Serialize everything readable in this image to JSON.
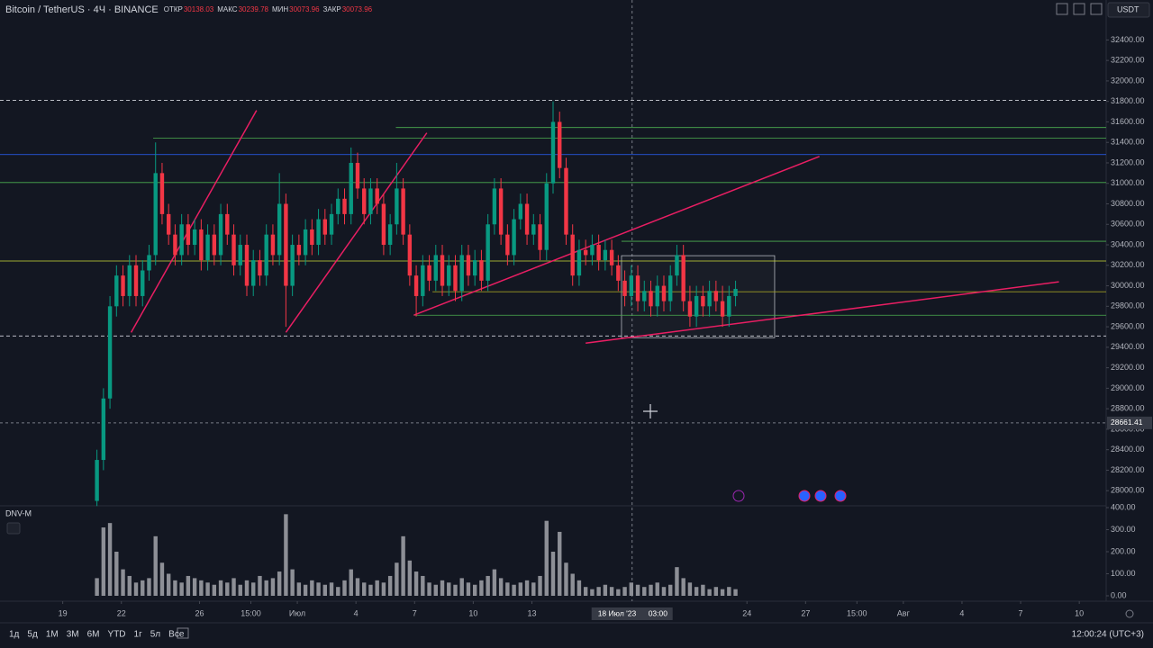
{
  "header": {
    "symbol": "Bitcoin / TetherUS · 4Ч · BINANCE",
    "legend_labels": [
      "ОТКР",
      "МАКС",
      "МИН",
      "ЗАКР"
    ],
    "legend_values": [
      30138.03,
      30239.78,
      30073.96,
      30073.96
    ],
    "currency": "USDT"
  },
  "chart_data": {
    "type": "candlestick",
    "x": [
      42,
      50,
      58,
      66,
      74,
      82,
      90,
      98,
      106,
      114,
      122,
      130,
      138,
      146,
      154,
      162,
      170,
      178,
      186,
      194,
      202,
      210,
      218,
      226,
      234,
      242,
      250,
      258,
      266,
      274,
      282,
      290,
      298,
      306,
      314,
      322,
      330,
      338,
      346,
      354,
      362,
      370,
      378,
      386,
      394,
      402,
      410,
      418,
      426,
      434,
      442,
      450,
      458,
      466,
      474,
      482,
      490,
      498,
      506,
      514,
      522,
      530,
      538,
      546,
      554,
      562,
      570,
      578,
      586,
      594,
      602,
      610,
      618,
      626,
      634,
      642,
      650,
      658,
      666,
      674,
      682,
      690,
      698,
      706,
      714,
      722,
      730,
      738,
      746,
      754,
      762,
      770,
      778,
      786,
      794,
      802,
      810,
      818,
      826
    ],
    "open": [
      27900,
      28300,
      28900,
      29800,
      30100,
      29900,
      30200,
      29900,
      30150,
      30300,
      31100,
      30700,
      30500,
      30300,
      30600,
      30400,
      30550,
      30250,
      30500,
      30300,
      30700,
      30500,
      30200,
      30400,
      30000,
      30250,
      30100,
      30500,
      30300,
      30800,
      30000,
      30400,
      30300,
      30550,
      30400,
      30650,
      30500,
      30700,
      30850,
      30700,
      31200,
      30950,
      30700,
      30950,
      30800,
      30400,
      30600,
      30950,
      30500,
      30100,
      29900,
      30200,
      30050,
      30300,
      30000,
      30200,
      29950,
      30300,
      30100,
      30250,
      30050,
      30600,
      30950,
      30500,
      30300,
      30650,
      30800,
      30500,
      30600,
      30350,
      31000,
      31600,
      31150,
      30500,
      30100,
      30350,
      30300,
      30400,
      30250,
      30350,
      30200,
      30050,
      29900,
      30100,
      29850,
      29950,
      29800,
      30000,
      29850,
      30100,
      30300,
      29850,
      29700,
      29900,
      29800,
      29950,
      29850,
      29700,
      29900
    ],
    "high": [
      28400,
      29000,
      29900,
      30200,
      30200,
      30300,
      30300,
      30250,
      30400,
      31400,
      31200,
      30800,
      30600,
      30700,
      30700,
      30650,
      30650,
      30600,
      30600,
      30800,
      30800,
      30600,
      30500,
      30500,
      30350,
      30350,
      30600,
      30600,
      31100,
      30900,
      30500,
      30500,
      30650,
      30650,
      30750,
      30750,
      30800,
      30950,
      30950,
      31350,
      31300,
      31050,
      31050,
      31050,
      30900,
      30700,
      31200,
      31050,
      30600,
      30200,
      30300,
      30300,
      30400,
      30400,
      30300,
      30300,
      30400,
      30400,
      30350,
      30350,
      30700,
      31050,
      31050,
      30600,
      30750,
      30900,
      30900,
      30700,
      30700,
      31100,
      31800,
      31700,
      31250,
      30600,
      30450,
      30450,
      30500,
      30500,
      30450,
      30450,
      30300,
      30150,
      30200,
      30200,
      30050,
      30050,
      30100,
      30100,
      30200,
      30400,
      30400,
      30000,
      30000,
      30000,
      30050,
      30050,
      30000,
      30000,
      30050
    ],
    "low": [
      27850,
      28200,
      28800,
      29700,
      29800,
      29800,
      29800,
      29800,
      30050,
      30200,
      30600,
      30400,
      30200,
      30200,
      30300,
      30300,
      30150,
      30150,
      30200,
      30200,
      30400,
      30100,
      30100,
      29900,
      29900,
      30000,
      30000,
      30200,
      30200,
      29600,
      29900,
      30200,
      30200,
      30300,
      30300,
      30400,
      30400,
      30600,
      30600,
      30600,
      30850,
      30600,
      30600,
      30700,
      30300,
      30300,
      30500,
      30400,
      30000,
      29700,
      29800,
      29950,
      29950,
      29900,
      29900,
      29850,
      29850,
      30000,
      30000,
      29950,
      29950,
      30500,
      30400,
      30200,
      30200,
      30550,
      30400,
      30400,
      30250,
      30250,
      30900,
      31050,
      30400,
      30000,
      30000,
      30200,
      30200,
      30150,
      30150,
      30100,
      29950,
      29800,
      29800,
      29750,
      29750,
      29700,
      29700,
      29750,
      29750,
      30000,
      29750,
      29600,
      29600,
      29700,
      29700,
      29750,
      29600,
      29600,
      29800
    ],
    "close": [
      28300,
      28900,
      29800,
      30100,
      29900,
      30200,
      29900,
      30150,
      30300,
      31100,
      30700,
      30500,
      30300,
      30600,
      30400,
      30550,
      30250,
      30500,
      30300,
      30700,
      30500,
      30200,
      30400,
      30000,
      30250,
      30100,
      30500,
      30300,
      30800,
      30000,
      30400,
      30300,
      30550,
      30400,
      30650,
      30500,
      30700,
      30850,
      30700,
      31200,
      30950,
      30700,
      30950,
      30800,
      30400,
      30600,
      30950,
      30500,
      30100,
      29900,
      30200,
      30050,
      30300,
      30000,
      30200,
      29950,
      30300,
      30100,
      30250,
      30050,
      30600,
      30950,
      30500,
      30300,
      30650,
      30800,
      30500,
      30600,
      30350,
      31000,
      31600,
      31150,
      30500,
      30100,
      30350,
      30300,
      30400,
      30250,
      30350,
      30200,
      30050,
      29900,
      30100,
      29850,
      29950,
      29800,
      30000,
      29850,
      30100,
      30300,
      29850,
      29700,
      29900,
      29800,
      29950,
      29850,
      29700,
      29900,
      29970
    ],
    "up_color": "#089981",
    "down_color": "#f23645",
    "volume": {
      "name": "DNV-M",
      "color": "#8d8f96",
      "values": [
        80,
        310,
        330,
        200,
        120,
        90,
        60,
        70,
        80,
        270,
        150,
        100,
        70,
        60,
        90,
        80,
        70,
        60,
        50,
        70,
        60,
        80,
        50,
        70,
        60,
        90,
        70,
        80,
        110,
        370,
        120,
        60,
        50,
        70,
        60,
        50,
        60,
        40,
        70,
        120,
        80,
        60,
        50,
        70,
        60,
        90,
        150,
        270,
        160,
        110,
        90,
        60,
        50,
        70,
        60,
        50,
        80,
        60,
        50,
        70,
        90,
        120,
        80,
        60,
        50,
        60,
        70,
        60,
        90,
        340,
        200,
        290,
        150,
        100,
        70,
        40,
        30,
        40,
        50,
        40,
        30,
        40,
        60,
        50,
        40,
        50,
        60,
        40,
        50,
        130,
        80,
        60,
        40,
        50,
        30,
        40,
        30,
        40,
        30
      ],
      "ylim": [
        0,
        400
      ],
      "yticks": [
        {
          "value": 0,
          "label": "0.00"
        },
        {
          "value": 100,
          "label": "100.00"
        },
        {
          "value": 200,
          "label": "200.00"
        },
        {
          "value": 300,
          "label": "300.00"
        },
        {
          "value": 400,
          "label": "400.00"
        }
      ]
    },
    "xlim": [
      -77,
      1281
    ],
    "xticks": [
      {
        "value": 0,
        "label": "19"
      },
      {
        "value": 72,
        "label": "22"
      },
      {
        "value": 168,
        "label": "26"
      },
      {
        "value": 231,
        "label": "15:00"
      },
      {
        "value": 288,
        "label": "Июл"
      },
      {
        "value": 360,
        "label": "4"
      },
      {
        "value": 432,
        "label": "7"
      },
      {
        "value": 504,
        "label": "10"
      },
      {
        "value": 576,
        "label": "13"
      },
      {
        "value": 840,
        "label": "24"
      },
      {
        "value": 912,
        "label": "27"
      },
      {
        "value": 975,
        "label": "15:00"
      },
      {
        "value": 1032,
        "label": "Авг"
      },
      {
        "value": 1104,
        "label": "4"
      },
      {
        "value": 1176,
        "label": "7"
      },
      {
        "value": 1248,
        "label": "10"
      }
    ],
    "ylim": [
      27870,
      32790
    ],
    "yticks": [
      {
        "value": 28000,
        "label": "28000.00"
      },
      {
        "value": 28200,
        "label": "28200.00"
      },
      {
        "value": 28400,
        "label": "28400.00"
      },
      {
        "value": 28600,
        "label": "28600.00"
      },
      {
        "value": 28800,
        "label": "28800.00"
      },
      {
        "value": 29000,
        "label": "29000.00"
      },
      {
        "value": 29200,
        "label": "29200.00"
      },
      {
        "value": 29400,
        "label": "29400.00"
      },
      {
        "value": 29600,
        "label": "29600.00"
      },
      {
        "value": 29800,
        "label": "29800.00"
      },
      {
        "value": 30000,
        "label": "30000.00"
      },
      {
        "value": 30200,
        "label": "30200.00"
      },
      {
        "value": 30400,
        "label": "30400.00"
      },
      {
        "value": 30600,
        "label": "30600.00"
      },
      {
        "value": 30800,
        "label": "30800.00"
      },
      {
        "value": 31000,
        "label": "31000.00"
      },
      {
        "value": 31200,
        "label": "31200.00"
      },
      {
        "value": 31400,
        "label": "31400.00"
      },
      {
        "value": 31600,
        "label": "31600.00"
      },
      {
        "value": 31800,
        "label": "31800.00"
      },
      {
        "value": 32000,
        "label": "32000.00"
      },
      {
        "value": 32200,
        "label": "32200.00"
      },
      {
        "value": 32400,
        "label": "32400.00"
      }
    ],
    "drawings": [
      {
        "color": "#2962ff",
        "x": [
          -77,
          1281
        ],
        "y": [
          31281,
          31281
        ]
      },
      {
        "color": "#4caf50",
        "x": [
          111,
          1281
        ],
        "y": [
          31440,
          31440
        ]
      },
      {
        "color": "#4caf50",
        "x": [
          409,
          1281
        ],
        "y": [
          31545,
          31545
        ]
      },
      {
        "color": "#4caf50",
        "x": [
          -77,
          1281
        ],
        "y": [
          31008,
          31008
        ]
      },
      {
        "color": "#4caf50",
        "x": [
          686,
          1281
        ],
        "y": [
          30435,
          30435
        ]
      },
      {
        "color": "#cddc39",
        "x": [
          -77,
          1281
        ],
        "y": [
          30242,
          30242
        ]
      },
      {
        "color": "#9e9d24",
        "x": [
          454,
          1281
        ],
        "y": [
          29942,
          29942
        ]
      },
      {
        "color": "#4caf50",
        "x": [
          431,
          1281
        ],
        "y": [
          29713,
          29713
        ]
      },
      {
        "color": "#d1d4dc",
        "dash": true,
        "x": [
          -77,
          1281
        ],
        "y": [
          29510,
          29510
        ]
      },
      {
        "color": "#d1d4dc",
        "dash": true,
        "x": [
          -77,
          1281
        ],
        "y": [
          31810,
          31810
        ]
      },
      {
        "color": "#e91e63",
        "x": [
          84,
          238
        ],
        "y": [
          29545,
          31713
        ]
      },
      {
        "color": "#e91e63",
        "x": [
          274,
          447
        ],
        "y": [
          29545,
          31493
        ]
      },
      {
        "color": "#e91e63",
        "x": [
          431,
          929
        ],
        "y": [
          29713,
          31263
        ]
      },
      {
        "color": "#e91e63",
        "x": [
          642,
          1223
        ],
        "y": [
          29440,
          30039
        ]
      }
    ],
    "rectangle": {
      "color": "#b2b5be",
      "x": [
        686,
        874
      ],
      "y": [
        30294,
        29493
      ]
    },
    "crosshair": {
      "x": 699,
      "y": 28661.41,
      "x_label": "18 Июл '23",
      "x_time": "03:00"
    }
  },
  "toolbar": {
    "ranges": [
      "1д",
      "5д",
      "1М",
      "3М",
      "6М",
      "YTD",
      "1г",
      "5л",
      "Все"
    ],
    "clock": "12:00:24 (UTC+3)"
  }
}
